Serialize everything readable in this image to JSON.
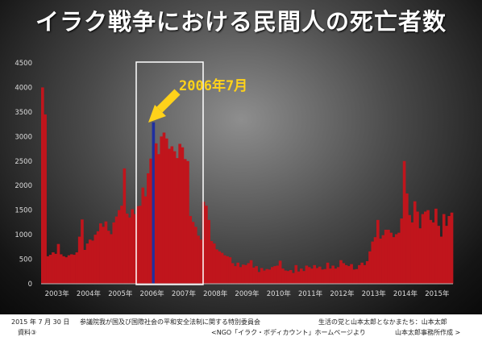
{
  "title": "イラク戦争における民間人の死亡者数",
  "annotation": {
    "text": "2006年7月",
    "highlight_period": "2005年 – 2007年"
  },
  "footer": {
    "date": "2015 年 7 月 30 日",
    "committee": "参議院我が国及び国際社会の平和安全法制に関する特別委員会",
    "party": "生活の党と山本太郎となかまたち：山本太郎",
    "doc": "資料③",
    "source": "<NGO「イラク・ボディカウント」ホームページより",
    "made_by": "山本太郎事務所作成 >"
  },
  "colors": {
    "bar": "#c0151c",
    "highlight": "#1f2fa0",
    "arrow": "#ffd21a",
    "annotation_text": "#ffd21a"
  },
  "chart_data": {
    "type": "bar",
    "title": "",
    "xlabel": "",
    "ylabel": "",
    "ylim": [
      0,
      4500
    ],
    "yticks": [
      0,
      500,
      1000,
      1500,
      2000,
      2500,
      3000,
      3500,
      4000,
      4500
    ],
    "xtick_labels": [
      "2003年",
      "2004年",
      "2005年",
      "2006年",
      "2007年",
      "2008年",
      "2009年",
      "2010年",
      "2011年",
      "2012年",
      "2013年",
      "2014年",
      "2015年"
    ],
    "grid": false,
    "legend": "none",
    "start_month": "2003-01",
    "series": [
      {
        "values": [
          4000,
          3450,
          560,
          590,
          640,
          610,
          810,
          600,
          560,
          540,
          580,
          600,
          590,
          640,
          960,
          1310,
          690,
          820,
          900,
          880,
          1000,
          1070,
          1230,
          1160,
          1270,
          1080,
          1010,
          1250,
          1370,
          1500,
          1590,
          2350,
          1430,
          1350,
          1520,
          1420,
          1580,
          1590,
          1960,
          1780,
          2250,
          2550,
          3290,
          2860,
          2640,
          3000,
          3080,
          2960,
          2750,
          2800,
          2700,
          2560,
          2850,
          2780,
          2540,
          2500,
          1380,
          1260,
          1160,
          980,
          900,
          1670,
          1590,
          1300,
          870,
          820,
          700,
          660,
          630,
          580,
          560,
          540,
          420,
          360,
          430,
          340,
          390,
          380,
          420,
          480,
          330,
          360,
          240,
          320,
          270,
          300,
          290,
          340,
          360,
          370,
          470,
          310,
          270,
          260,
          280,
          220,
          380,
          250,
          310,
          260,
          370,
          340,
          310,
          380,
          320,
          350,
          290,
          300,
          430,
          310,
          370,
          310,
          340,
          480,
          420,
          380,
          360,
          400,
          290,
          300,
          380,
          430,
          380,
          460,
          660,
          860,
          950,
          1300,
          920,
          990,
          1100,
          1100,
          1040,
          950,
          1010,
          1040,
          1330,
          2500,
          1840,
          1400,
          1250,
          1680,
          1470,
          1130,
          1420,
          1470,
          1500,
          1300,
          1250,
          1530,
          1180,
          960,
          1420,
          1180,
          1380,
          1450
        ]
      }
    ],
    "highlight_month": "2006-07"
  }
}
